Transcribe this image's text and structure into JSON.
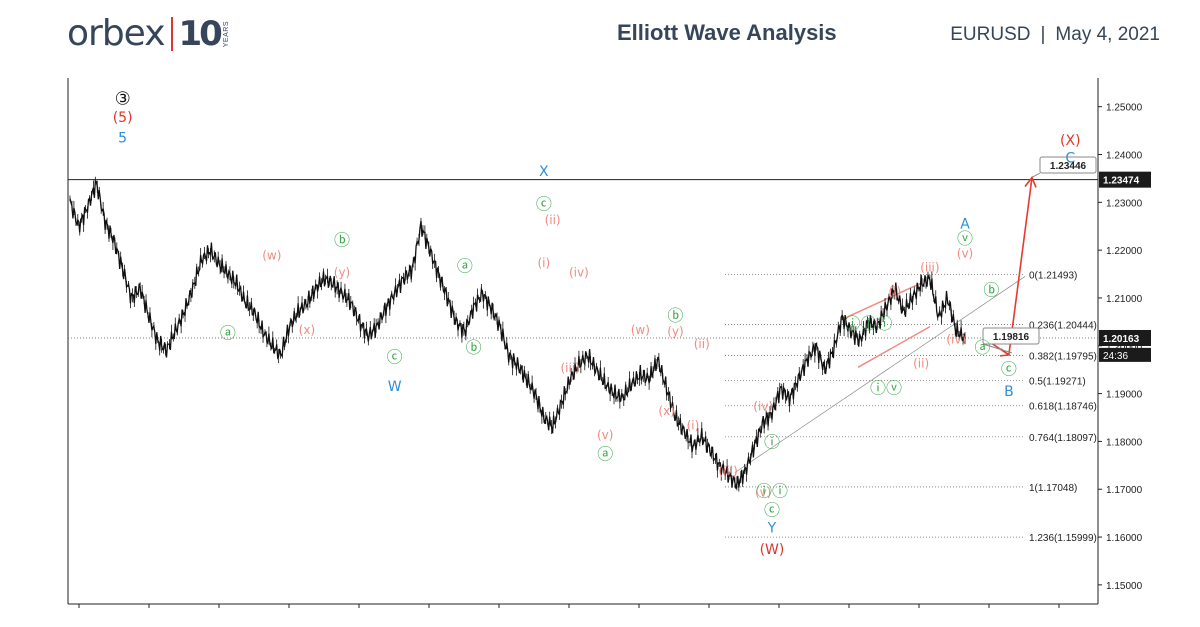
{
  "header": {
    "logo_word": "orbex",
    "logo_number": "10",
    "logo_years": "YEARS",
    "title": "Elliott Wave Analysis",
    "symbol": "EURUSD",
    "separator": "|",
    "date": "May 4, 2021"
  },
  "chart_data": {
    "type": "line",
    "title": "Elliott Wave Analysis",
    "symbol": "EURUSD",
    "date": "May 4, 2021",
    "ylim": [
      1.146,
      1.256
    ],
    "y_ticks": [
      "1.25000",
      "1.24000",
      "1.23000",
      "1.22000",
      "1.21000",
      "1.20000",
      "1.19000",
      "1.18000",
      "1.17000",
      "1.16000",
      "1.15000"
    ],
    "price_line_level": 1.23474,
    "price_tags": [
      {
        "label": "1.23474",
        "price": 1.23474,
        "style": "dark"
      },
      {
        "label": "1.20163",
        "price": 1.20163,
        "style": "dark"
      },
      {
        "label": "24:36",
        "price": 1.1981,
        "style": "plain"
      }
    ],
    "current_price": 1.20163,
    "current_price_countdown": "24:36",
    "series": [
      {
        "name": "EURUSD",
        "values": [
          1.23,
          1.225,
          1.229,
          1.234,
          1.226,
          1.222,
          1.216,
          1.21,
          1.212,
          1.206,
          1.201,
          1.199,
          1.203,
          1.207,
          1.212,
          1.218,
          1.22,
          1.217,
          1.215,
          1.213,
          1.209,
          1.207,
          1.203,
          1.2,
          1.198,
          1.204,
          1.207,
          1.209,
          1.212,
          1.214,
          1.213,
          1.211,
          1.209,
          1.205,
          1.202,
          1.204,
          1.208,
          1.211,
          1.214,
          1.216,
          1.225,
          1.22,
          1.215,
          1.21,
          1.205,
          1.203,
          1.208,
          1.211,
          1.208,
          1.204,
          1.198,
          1.196,
          1.193,
          1.19,
          1.185,
          1.183,
          1.188,
          1.193,
          1.196,
          1.198,
          1.195,
          1.192,
          1.19,
          1.189,
          1.192,
          1.194,
          1.193,
          1.197,
          1.191,
          1.185,
          1.182,
          1.179,
          1.181,
          1.178,
          1.175,
          1.173,
          1.171,
          1.174,
          1.179,
          1.184,
          1.186,
          1.191,
          1.189,
          1.193,
          1.197,
          1.2,
          1.195,
          1.199,
          1.206,
          1.203,
          1.201,
          1.205,
          1.204,
          1.208,
          1.212,
          1.207,
          1.21,
          1.213,
          1.214,
          1.206,
          1.21,
          1.203,
          1.2016
        ]
      }
    ],
    "fib_levels": [
      {
        "label": "0(1.21493)",
        "price": 1.21493
      },
      {
        "label": "0.236(1.20444)",
        "price": 1.20444
      },
      {
        "label": "0.382(1.19795)",
        "price": 1.19795
      },
      {
        "label": "0.5(1.19271)",
        "price": 1.19271
      },
      {
        "label": "0.618(1.18746)",
        "price": 1.18746
      },
      {
        "label": "0.764(1.18097)",
        "price": 1.18097
      },
      {
        "label": "1(1.17048)",
        "price": 1.17048
      },
      {
        "label": "1.236(1.15999)",
        "price": 1.15999
      }
    ],
    "callouts": [
      {
        "label": "1.19816",
        "price": 1.19816
      },
      {
        "label": "1.23446",
        "price": 1.23446
      }
    ],
    "wave_labels": [
      {
        "text": "③",
        "color": "black",
        "bar": 6,
        "price": 1.2505
      },
      {
        "text": "(5)",
        "color": "red",
        "bar": 6,
        "price": 1.2468
      },
      {
        "text": "5",
        "color": "blue",
        "bar": 6,
        "price": 1.2425
      },
      {
        "text": "ⓐ",
        "color": "green",
        "bar": 18,
        "price": 1.2015
      },
      {
        "text": "(w)",
        "color": "salmon",
        "bar": 23,
        "price": 1.218
      },
      {
        "text": "ⓑ",
        "color": "green",
        "bar": 31,
        "price": 1.221
      },
      {
        "text": "(y)",
        "color": "salmon",
        "bar": 31,
        "price": 1.2145
      },
      {
        "text": "(x)",
        "color": "salmon",
        "bar": 27,
        "price": 1.2025
      },
      {
        "text": "ⓒ",
        "color": "green",
        "bar": 37,
        "price": 1.1965
      },
      {
        "text": "W",
        "color": "blue",
        "bar": 37,
        "price": 1.1905
      },
      {
        "text": "ⓐ",
        "color": "green",
        "bar": 45,
        "price": 1.2155
      },
      {
        "text": "ⓑ",
        "color": "green",
        "bar": 46,
        "price": 1.1985
      },
      {
        "text": "X",
        "color": "blue",
        "bar": 54,
        "price": 1.2355
      },
      {
        "text": "ⓒ",
        "color": "green",
        "bar": 54,
        "price": 1.2285
      },
      {
        "text": "(ii)",
        "color": "salmon",
        "bar": 55,
        "price": 1.2255
      },
      {
        "text": "(i)",
        "color": "salmon",
        "bar": 54,
        "price": 1.2165
      },
      {
        "text": "(iv)",
        "color": "salmon",
        "bar": 58,
        "price": 1.2145
      },
      {
        "text": "(iii)",
        "color": "salmon",
        "bar": 57,
        "price": 1.1945
      },
      {
        "text": "(w)",
        "color": "salmon",
        "bar": 65,
        "price": 1.2025
      },
      {
        "text": "ⓑ",
        "color": "green",
        "bar": 69,
        "price": 1.2052
      },
      {
        "text": "(y)",
        "color": "salmon",
        "bar": 69,
        "price": 1.2022
      },
      {
        "text": "(ii)",
        "color": "salmon",
        "bar": 72,
        "price": 1.1995
      },
      {
        "text": "(x)",
        "color": "salmon",
        "bar": 68,
        "price": 1.1855
      },
      {
        "text": "(i)",
        "color": "salmon",
        "bar": 71,
        "price": 1.1825
      },
      {
        "text": "(v)",
        "color": "salmon",
        "bar": 61,
        "price": 1.1805
      },
      {
        "text": "ⓐ",
        "color": "green",
        "bar": 61,
        "price": 1.1762
      },
      {
        "text": "(iv)",
        "color": "salmon",
        "bar": 79,
        "price": 1.1865
      },
      {
        "text": "ⓘ",
        "color": "green",
        "bar": 80,
        "price": 1.1787
      },
      {
        "text": "(iii)",
        "color": "salmon",
        "bar": 75,
        "price": 1.173
      },
      {
        "text": "(v)",
        "color": "salmon",
        "bar": 79,
        "price": 1.1685
      },
      {
        "text": "ⓘⓘ",
        "color": "green",
        "bar": 80,
        "price": 1.1685
      },
      {
        "text": "ⓒ",
        "color": "green",
        "bar": 80,
        "price": 1.1645
      },
      {
        "text": "Y",
        "color": "blue",
        "bar": 80,
        "price": 1.161
      },
      {
        "text": "(W)",
        "color": "red",
        "bar": 80,
        "price": 1.1565
      },
      {
        "text": "ⓘⓘⓘ",
        "color": "green",
        "bar": 91,
        "price": 1.2035
      },
      {
        "text": "ⓘⓥ",
        "color": "green",
        "bar": 93,
        "price": 1.19
      },
      {
        "text": "(i)",
        "color": "salmon",
        "bar": 94,
        "price": 1.2105
      },
      {
        "text": "(ii)",
        "color": "salmon",
        "bar": 97,
        "price": 1.1955
      },
      {
        "text": "(iii)",
        "color": "salmon",
        "bar": 98,
        "price": 1.2155
      },
      {
        "text": "(iv)",
        "color": "salmon",
        "bar": 101,
        "price": 1.2005
      },
      {
        "text": "A",
        "color": "blue",
        "bar": 102,
        "price": 1.2245
      },
      {
        "text": "ⓥ",
        "color": "green",
        "bar": 102,
        "price": 1.2213
      },
      {
        "text": "(v)",
        "color": "salmon",
        "bar": 102,
        "price": 1.2185
      },
      {
        "text": "ⓑ",
        "color": "green",
        "bar": 105,
        "price": 1.2105
      },
      {
        "text": "ⓐ",
        "color": "green",
        "bar": 104,
        "price": 1.1985
      },
      {
        "text": "ⓒ",
        "color": "green",
        "bar": 107,
        "price": 1.194
      },
      {
        "text": "B",
        "color": "blue",
        "bar": 107,
        "price": 1.1895
      },
      {
        "text": "(X)",
        "color": "red",
        "bar": 114,
        "price": 1.242
      },
      {
        "text": "C",
        "color": "blue",
        "bar": 114,
        "price": 1.2383
      }
    ],
    "price_scale_position": "right"
  },
  "colors": {
    "text": "#36455a",
    "red": "#e0362b",
    "blue": "#2e8fd8",
    "green": "#3aa84a",
    "salmon": "#ef8b80",
    "candles": "#111111",
    "arrow": "#e53a2e"
  }
}
